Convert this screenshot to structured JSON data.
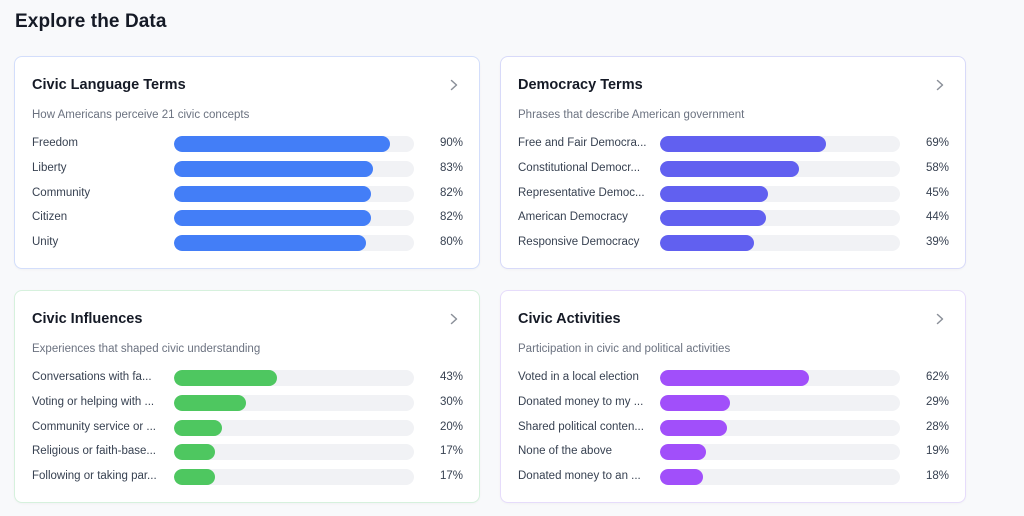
{
  "page": {
    "title": "Explore the Data"
  },
  "cards": [
    {
      "title": "Civic Language Terms",
      "subtitle": "How Americans perceive 21 civic concepts",
      "color": "#437ef7",
      "items": [
        {
          "label": "Freedom",
          "value": 90,
          "display": "90%"
        },
        {
          "label": "Liberty",
          "value": 83,
          "display": "83%"
        },
        {
          "label": "Community",
          "value": 82,
          "display": "82%"
        },
        {
          "label": "Citizen",
          "value": 82,
          "display": "82%"
        },
        {
          "label": "Unity",
          "value": 80,
          "display": "80%"
        }
      ]
    },
    {
      "title": "Democracy Terms",
      "subtitle": "Phrases that describe American government",
      "color": "#6160f0",
      "items": [
        {
          "label": "Free and Fair Democra...",
          "value": 69,
          "display": "69%"
        },
        {
          "label": "Constitutional Democr...",
          "value": 58,
          "display": "58%"
        },
        {
          "label": "Representative Democ...",
          "value": 45,
          "display": "45%"
        },
        {
          "label": "American Democracy",
          "value": 44,
          "display": "44%"
        },
        {
          "label": "Responsive Democracy",
          "value": 39,
          "display": "39%"
        }
      ]
    },
    {
      "title": "Civic Influences",
      "subtitle": "Experiences that shaped civic understanding",
      "color": "#4ec760",
      "items": [
        {
          "label": "Conversations with fa...",
          "value": 43,
          "display": "43%"
        },
        {
          "label": "Voting or helping with ...",
          "value": 30,
          "display": "30%"
        },
        {
          "label": "Community service or ...",
          "value": 20,
          "display": "20%"
        },
        {
          "label": "Religious or faith-base...",
          "value": 17,
          "display": "17%"
        },
        {
          "label": "Following or taking par...",
          "value": 17,
          "display": "17%"
        }
      ]
    },
    {
      "title": "Civic Activities",
      "subtitle": "Participation in civic and political activities",
      "color": "#a14ffa",
      "items": [
        {
          "label": "Voted in a local election",
          "value": 62,
          "display": "62%"
        },
        {
          "label": "Donated money to my ...",
          "value": 29,
          "display": "29%"
        },
        {
          "label": "Shared political conten...",
          "value": 28,
          "display": "28%"
        },
        {
          "label": "None of the above",
          "value": 19,
          "display": "19%"
        },
        {
          "label": "Donated money to an ...",
          "value": 18,
          "display": "18%"
        }
      ]
    }
  ],
  "icons": {
    "card_action": "chevron-right-icon"
  }
}
